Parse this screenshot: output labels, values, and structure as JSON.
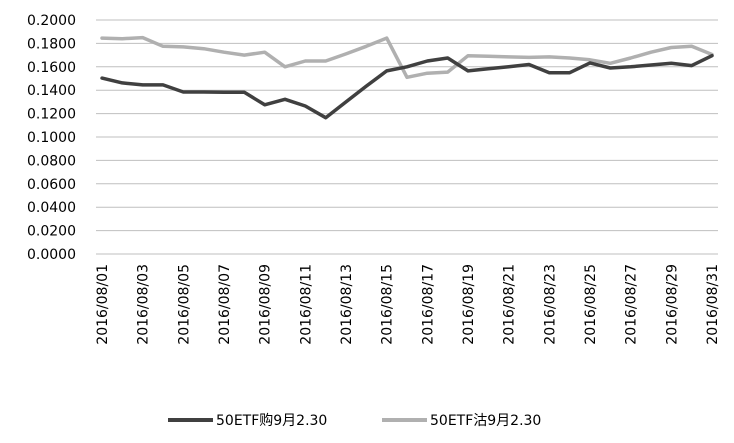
{
  "chart_data": {
    "type": "line",
    "x": [
      "2016/08/01",
      "2016/08/02",
      "2016/08/03",
      "2016/08/04",
      "2016/08/05",
      "2016/08/06",
      "2016/08/07",
      "2016/08/08",
      "2016/08/09",
      "2016/08/10",
      "2016/08/11",
      "2016/08/12",
      "2016/08/13",
      "2016/08/14",
      "2016/08/15",
      "2016/08/16",
      "2016/08/17",
      "2016/08/18",
      "2016/08/19",
      "2016/08/20",
      "2016/08/21",
      "2016/08/22",
      "2016/08/23",
      "2016/08/24",
      "2016/08/25",
      "2016/08/26",
      "2016/08/27",
      "2016/08/28",
      "2016/08/29",
      "2016/08/30",
      "2016/08/31"
    ],
    "x_tick_labels": [
      "2016/08/01",
      "2016/08/03",
      "2016/08/05",
      "2016/08/07",
      "2016/08/09",
      "2016/08/11",
      "2016/08/13",
      "2016/08/15",
      "2016/08/17",
      "2016/08/19",
      "2016/08/21",
      "2016/08/23",
      "2016/08/25",
      "2016/08/27",
      "2016/08/29",
      "2016/08/31"
    ],
    "y_tick_labels": [
      "0.2000",
      "0.1800",
      "0.1600",
      "0.1400",
      "0.1200",
      "0.1000",
      "0.0800",
      "0.0600",
      "0.0400",
      "0.0200",
      "0.0000"
    ],
    "ylim": [
      0,
      0.2
    ],
    "y_ticks": [
      0.2,
      0.18,
      0.16,
      0.14,
      0.12,
      0.1,
      0.08,
      0.06,
      0.04,
      0.02,
      0
    ],
    "grid": "horizontal",
    "legend_position": "bottom",
    "title": "",
    "xlabel": "",
    "ylabel": "",
    "series": [
      {
        "name": "50ETF购9月2.30",
        "color": "#404040",
        "values": [
          0.1503,
          0.1462,
          0.1445,
          0.1445,
          0.1385,
          0.1385,
          0.1382,
          0.1382,
          0.1275,
          0.1322,
          0.1265,
          0.1165,
          0.13,
          0.1435,
          0.1565,
          0.16,
          0.165,
          0.1675,
          0.1565,
          0.1583,
          0.16,
          0.162,
          0.155,
          0.155,
          0.1633,
          0.159,
          0.16,
          0.1615,
          0.163,
          0.161,
          0.1695
        ]
      },
      {
        "name": "50ETF沽9月2.30",
        "color": "#b0b0b0",
        "values": [
          0.1845,
          0.184,
          0.185,
          0.1775,
          0.177,
          0.1755,
          0.1725,
          0.17,
          0.1725,
          0.16,
          0.165,
          0.165,
          0.171,
          0.1775,
          0.1845,
          0.151,
          0.1545,
          0.1555,
          0.1695,
          0.169,
          0.1685,
          0.168,
          0.1685,
          0.1675,
          0.166,
          0.163,
          0.1675,
          0.1725,
          0.1765,
          0.1775,
          0.1705
        ]
      }
    ]
  }
}
